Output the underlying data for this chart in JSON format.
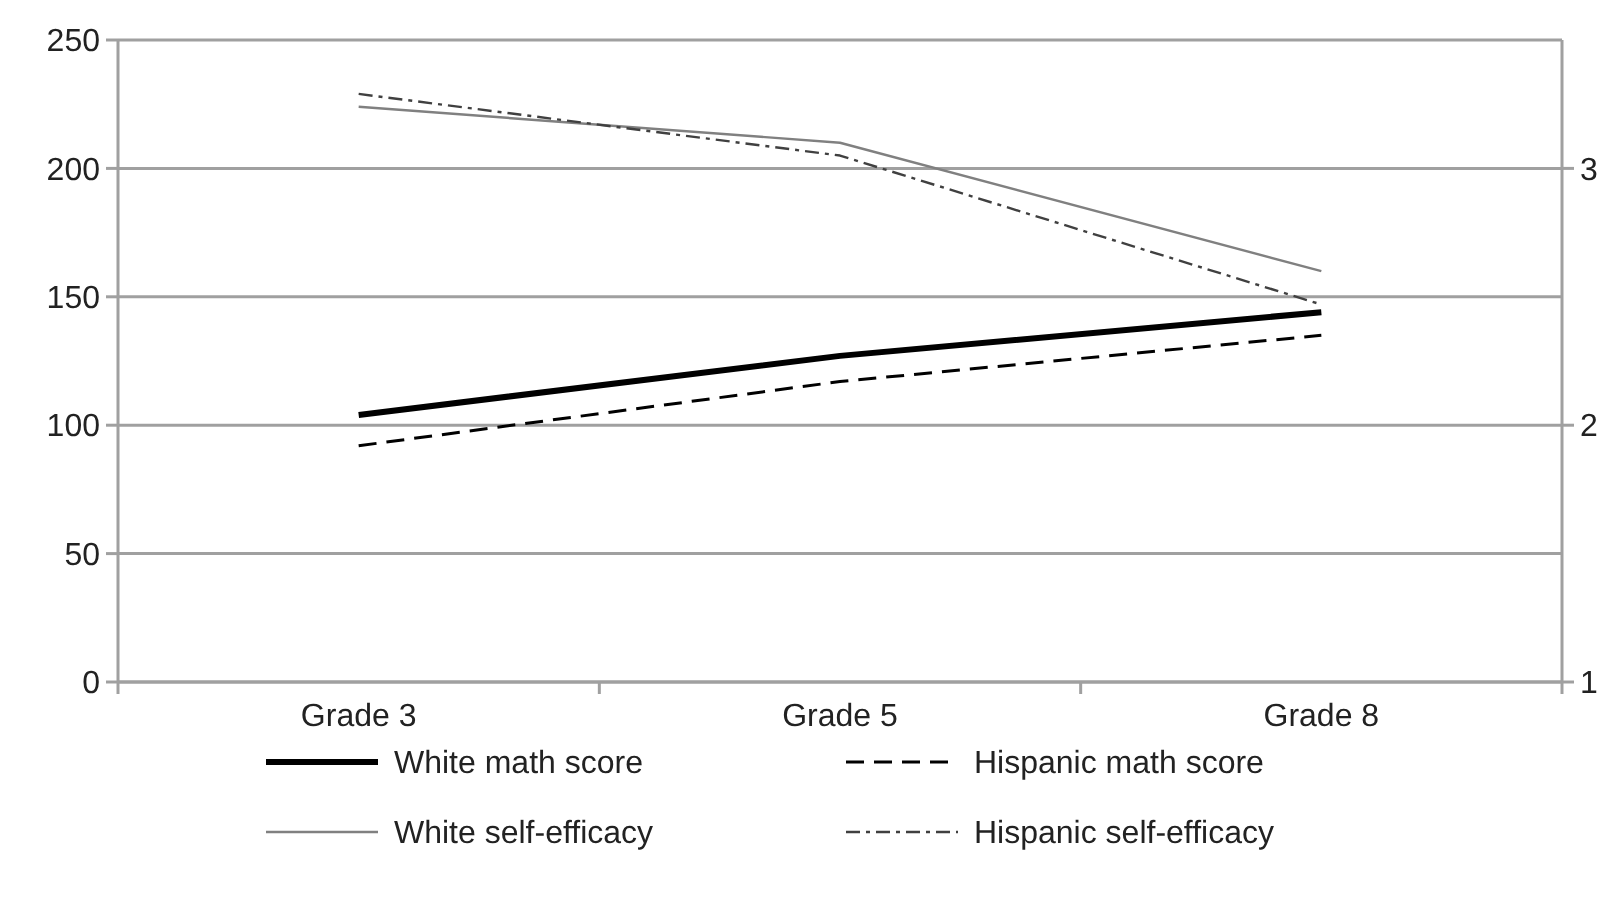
{
  "chart_data": {
    "type": "line",
    "categories": [
      "Grade 3",
      "Grade 5",
      "Grade 8"
    ],
    "series": [
      {
        "name": "White math score",
        "color": "#000000",
        "values": [
          104,
          127,
          144
        ],
        "line_style": "solid"
      },
      {
        "name": "Hispanic math score",
        "color": "#000000",
        "values": [
          92,
          117,
          135
        ],
        "line_style": "dashed"
      },
      {
        "name": "White self-efficacy",
        "color": "#808080",
        "values": [
          3.24,
          3.1,
          2.6
        ],
        "line_style": "solid",
        "axis": "y2"
      },
      {
        "name": "Hispanic self-efficacy",
        "color": "#404040",
        "values": [
          3.29,
          3.05,
          2.47
        ],
        "line_style": "dashdot",
        "axis": "y2"
      }
    ],
    "ylim": [
      0,
      250
    ],
    "yticks": [
      0,
      50,
      100,
      150,
      200,
      250
    ],
    "y2lim": [
      1,
      3.5
    ],
    "y2ticks": [
      1,
      2,
      3
    ],
    "grid": "y",
    "legend": "bottom",
    "marker": "none"
  }
}
